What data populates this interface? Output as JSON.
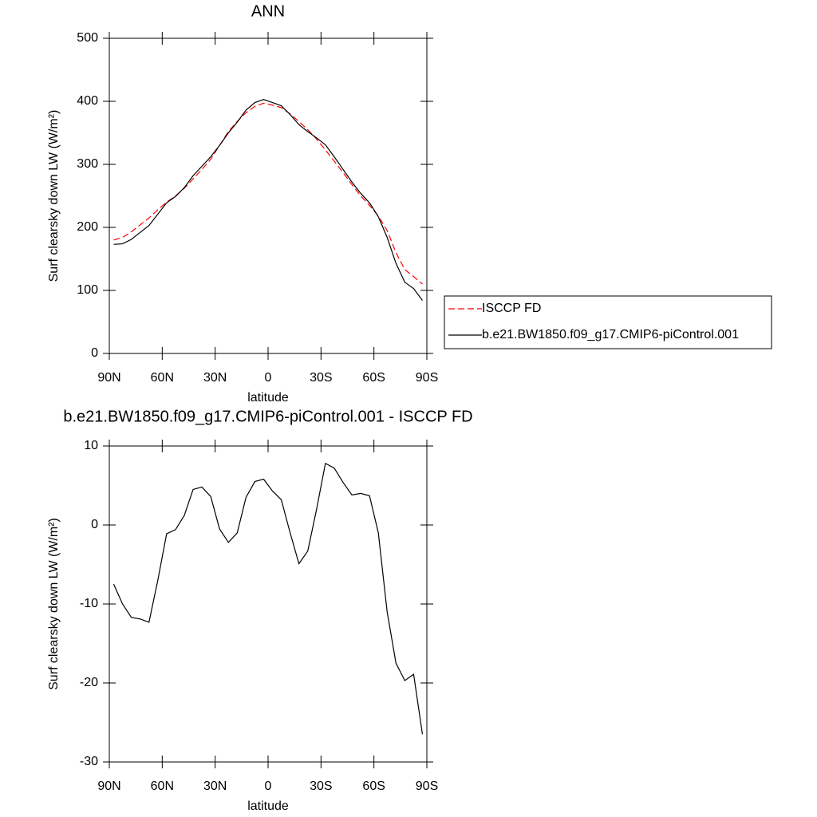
{
  "chart_data": [
    {
      "type": "line",
      "title": "ANN",
      "xlabel": "latitude",
      "ylabel": "Surf clearsky down LW (W/m²)",
      "x": [
        87.5,
        82.5,
        77.5,
        72.5,
        67.5,
        62.5,
        57.5,
        52.5,
        47.5,
        42.5,
        37.5,
        32.5,
        27.5,
        22.5,
        17.5,
        12.5,
        7.5,
        2.5,
        -2.5,
        -7.5,
        -12.5,
        -17.5,
        -22.5,
        -27.5,
        -32.5,
        -37.5,
        -42.5,
        -47.5,
        -52.5,
        -57.5,
        -62.5,
        -67.5,
        -72.5,
        -77.5,
        -82.5,
        -87.5
      ],
      "series": [
        {
          "name": "ISCCP FD",
          "color": "#ff0000",
          "dashed": true,
          "values": [
            180,
            184,
            193,
            204,
            215,
            228,
            240,
            250,
            262,
            277,
            292,
            308,
            330,
            352,
            368,
            382,
            392,
            397,
            394,
            390,
            380,
            368,
            355,
            340,
            323,
            305,
            287,
            268,
            250,
            235,
            218,
            195,
            160,
            133,
            122,
            110
          ]
        },
        {
          "name": "b.e21.BW1850.f09_g17.CMIP6-piControl.001",
          "color": "#000000",
          "dashed": false,
          "values": [
            173,
            174,
            181,
            192,
            203,
            221,
            239,
            249,
            263,
            282,
            297,
            312,
            330,
            350,
            367,
            386,
            398,
            403,
            398,
            393,
            379,
            363,
            352,
            342,
            331,
            312,
            292,
            272,
            254,
            239,
            217,
            184,
            143,
            113,
            103,
            84
          ]
        }
      ],
      "xlim": [
        90,
        -90
      ],
      "xticks": [
        {
          "value": 90,
          "label": "90N"
        },
        {
          "value": 60,
          "label": "60N"
        },
        {
          "value": 30,
          "label": "30N"
        },
        0,
        {
          "value": -30,
          "label": "30S"
        },
        {
          "value": -60,
          "label": "60S"
        },
        {
          "value": -90,
          "label": "90S"
        }
      ],
      "ylim": [
        0,
        500
      ],
      "yticks": [
        0,
        100,
        200,
        300,
        400,
        500
      ],
      "grid": false,
      "legend": "right"
    },
    {
      "type": "line",
      "title": "b.e21.BW1850.f09_g17.CMIP6-piControl.001 - ISCCP FD",
      "xlabel": "latitude",
      "ylabel": "Surf clearsky down LW (W/m²)",
      "x": [
        87.5,
        82.5,
        77.5,
        72.5,
        67.5,
        62.5,
        57.5,
        52.5,
        47.5,
        42.5,
        37.5,
        32.5,
        27.5,
        22.5,
        17.5,
        12.5,
        7.5,
        2.5,
        -2.5,
        -7.5,
        -12.5,
        -17.5,
        -22.5,
        -27.5,
        -32.5,
        -37.5,
        -42.5,
        -47.5,
        -52.5,
        -57.5,
        -62.5,
        -67.5,
        -72.5,
        -77.5,
        -82.5,
        -87.5
      ],
      "values": [
        -7.5,
        -10,
        -11.7,
        -11.9,
        -12.3,
        -7,
        -1.1,
        -0.6,
        1.2,
        4.5,
        4.8,
        3.6,
        -0.5,
        -2.2,
        -1,
        3.5,
        5.5,
        5.8,
        4.3,
        3.2,
        -1,
        -4.9,
        -3.3,
        2,
        7.8,
        7.2,
        5.4,
        3.8,
        4,
        3.7,
        -1,
        -11,
        -17.5,
        -19.7,
        -18.9,
        -26.5
      ],
      "color": "#000000",
      "xlim": [
        90,
        -90
      ],
      "xticks": [
        {
          "value": 90,
          "label": "90N"
        },
        {
          "value": 60,
          "label": "60N"
        },
        {
          "value": 30,
          "label": "30N"
        },
        0,
        {
          "value": -30,
          "label": "30S"
        },
        {
          "value": -60,
          "label": "60S"
        },
        {
          "value": -90,
          "label": "90S"
        }
      ],
      "ylim": [
        -30,
        10
      ],
      "yticks": [
        -30,
        -20,
        -10,
        0,
        10
      ],
      "grid": false
    }
  ]
}
